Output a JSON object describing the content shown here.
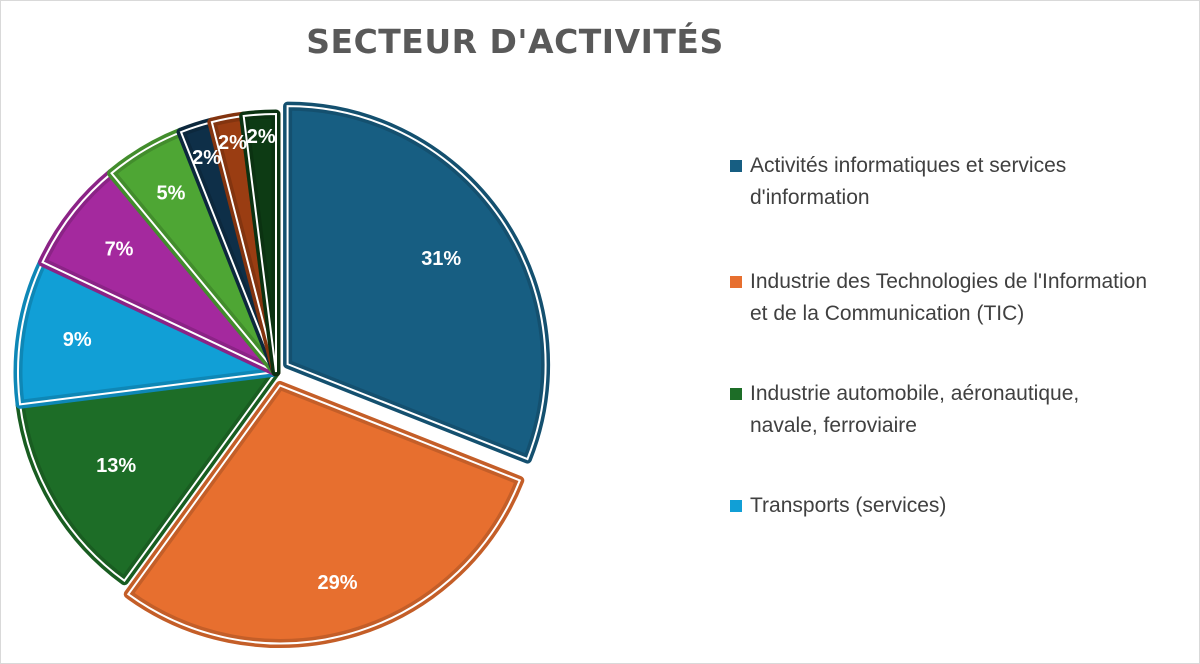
{
  "chart_data": {
    "type": "pie",
    "title": "SECTEUR D'ACTIVITÉS",
    "slices": [
      {
        "label": "Activités informatiques et services d'information",
        "value": 31,
        "display": "31%",
        "color": "#175e82"
      },
      {
        "label": "Industrie des Technologies de l'Information et de la Communication (TIC)",
        "value": 29,
        "display": "29%",
        "color": "#e76f2f"
      },
      {
        "label": "Industrie automobile, aéronautique, navale, ferroviaire",
        "value": 13,
        "display": "13%",
        "color": "#1d6d27"
      },
      {
        "label": "Transports (services)",
        "value": 9,
        "display": "9%",
        "color": "#119fd6"
      },
      {
        "label": "",
        "value": 7,
        "display": "7%",
        "color": "#a4299e"
      },
      {
        "label": "",
        "value": 5,
        "display": "5%",
        "color": "#4ea634"
      },
      {
        "label": "",
        "value": 2,
        "display": "2%",
        "color": "#0e2f48"
      },
      {
        "label": "",
        "value": 2,
        "display": "2%",
        "color": "#9a3d12"
      },
      {
        "label": "",
        "value": 2,
        "display": "2%",
        "color": "#0d3b14"
      }
    ],
    "legend": [
      "Activités informatiques et services d'information",
      "Industrie des Technologies de l'Information et de la Communication (TIC)",
      "Industrie automobile, aéronautique, navale, ferroviaire",
      "Transports (services)"
    ],
    "legend_position": "right"
  }
}
